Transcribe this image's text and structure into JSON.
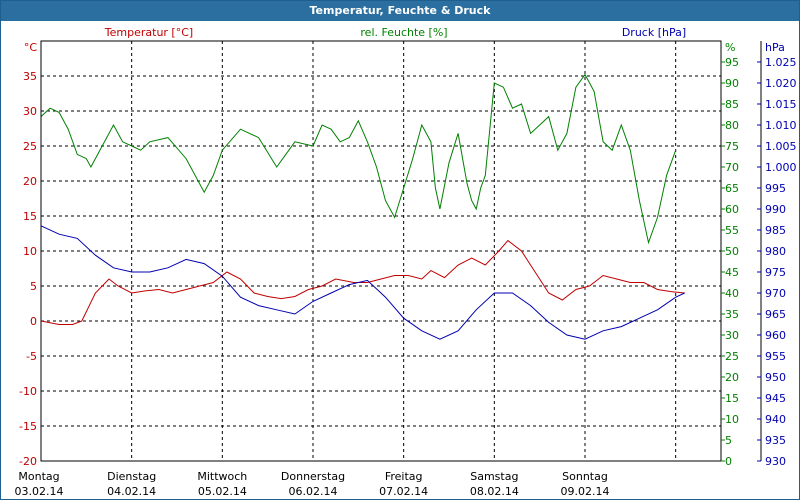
{
  "window": {
    "title": "Temperatur, Feuchte & Druck"
  },
  "chart_data": {
    "type": "line",
    "title": "Temperatur, Feuchte & Druck",
    "x_labels": [
      {
        "day": "Montag",
        "date": "03.02.14"
      },
      {
        "day": "Dienstag",
        "date": "04.02.14"
      },
      {
        "day": "Mittwoch",
        "date": "05.02.14"
      },
      {
        "day": "Donnerstag",
        "date": "06.02.14"
      },
      {
        "day": "Freitag",
        "date": "07.02.14"
      },
      {
        "day": "Samstag",
        "date": "08.02.14"
      },
      {
        "day": "Sonntag",
        "date": "09.02.14"
      }
    ],
    "x_range_days": [
      0,
      7.5
    ],
    "grid": true,
    "axes": {
      "temperature": {
        "label": "Temperatur [°C]",
        "unit": "°C",
        "range": [
          -20,
          40
        ],
        "ticks": [
          -20,
          -15,
          -10,
          -5,
          0,
          5,
          10,
          15,
          20,
          25,
          30,
          35
        ],
        "color": "#c00000"
      },
      "humidity": {
        "label": "rel. Feuchte [%]",
        "unit": "%",
        "range": [
          0,
          100
        ],
        "ticks": [
          0,
          5,
          10,
          15,
          20,
          25,
          30,
          35,
          40,
          45,
          50,
          55,
          60,
          65,
          70,
          75,
          80,
          85,
          90,
          95
        ],
        "color": "#008000"
      },
      "pressure": {
        "label": "Druck [hPa]",
        "unit": "hPa",
        "range": [
          930,
          1030
        ],
        "ticks": [
          "930",
          "935",
          "940",
          "945",
          "950",
          "955",
          "960",
          "965",
          "970",
          "975",
          "980",
          "985",
          "990",
          "995",
          "1.000",
          "1.005",
          "1.010",
          "1.015",
          "1.020",
          "1.025"
        ],
        "color": "#0000b0"
      }
    },
    "series": [
      {
        "name": "Temperatur [°C]",
        "axis": "temperature",
        "color": "#c00000",
        "x": [
          0,
          0.2,
          0.35,
          0.45,
          0.6,
          0.75,
          0.85,
          1.0,
          1.15,
          1.3,
          1.45,
          1.6,
          1.75,
          1.9,
          2.05,
          2.2,
          2.35,
          2.5,
          2.65,
          2.8,
          2.95,
          3.1,
          3.25,
          3.45,
          3.6,
          3.75,
          3.9,
          4.05,
          4.2,
          4.3,
          4.45,
          4.6,
          4.75,
          4.9,
          5.05,
          5.15,
          5.3,
          5.45,
          5.6,
          5.75,
          5.9,
          6.05,
          6.2,
          6.35,
          6.5,
          6.65,
          6.8,
          6.95,
          7.1
        ],
        "y": [
          0,
          -0.5,
          -0.5,
          0,
          4,
          6,
          5,
          4,
          4.3,
          4.5,
          4,
          4.5,
          5,
          5.5,
          7,
          6,
          4,
          3.5,
          3.2,
          3.5,
          4.5,
          5,
          6,
          5.5,
          5.5,
          6,
          6.5,
          6.5,
          6,
          7.2,
          6.2,
          8,
          9,
          8,
          10,
          11.5,
          10,
          7,
          4,
          3,
          4.5,
          5,
          6.5,
          6,
          5.5,
          5.5,
          4.5,
          4.2,
          4
        ]
      },
      {
        "name": "rel. Feuchte [%]",
        "axis": "humidity",
        "color": "#008000",
        "x": [
          0,
          0.1,
          0.2,
          0.3,
          0.4,
          0.5,
          0.55,
          0.6,
          0.7,
          0.8,
          0.9,
          1.0,
          1.1,
          1.2,
          1.4,
          1.6,
          1.8,
          1.9,
          2.0,
          2.2,
          2.4,
          2.6,
          2.7,
          2.8,
          3.0,
          3.1,
          3.2,
          3.3,
          3.4,
          3.5,
          3.6,
          3.7,
          3.8,
          3.9,
          4.0,
          4.1,
          4.2,
          4.3,
          4.35,
          4.4,
          4.5,
          4.6,
          4.7,
          4.75,
          4.8,
          4.85,
          4.9,
          5.0,
          5.1,
          5.2,
          5.3,
          5.4,
          5.5,
          5.6,
          5.7,
          5.8,
          5.9,
          6.0,
          6.1,
          6.2,
          6.3,
          6.4,
          6.5,
          6.6,
          6.7,
          6.8,
          6.9,
          7.0
        ],
        "y": [
          82,
          84,
          83,
          79,
          73,
          72,
          70,
          72,
          76,
          80,
          76,
          75,
          74,
          76,
          77,
          72,
          64,
          68,
          74,
          79,
          77,
          70,
          73,
          76,
          75,
          80,
          79,
          76,
          77,
          81,
          76,
          70,
          62,
          58,
          65,
          72,
          80,
          76,
          65,
          60,
          71,
          78,
          66,
          62,
          60,
          65,
          68,
          90,
          89,
          84,
          85,
          78,
          80,
          82,
          74,
          78,
          89,
          92,
          88,
          76,
          74,
          80,
          74,
          62,
          52,
          58,
          68,
          74
        ]
      },
      {
        "name": "Druck [hPa]",
        "axis": "pressure",
        "color": "#0000b0",
        "x": [
          0,
          0.2,
          0.4,
          0.6,
          0.8,
          1.0,
          1.2,
          1.4,
          1.6,
          1.8,
          2.0,
          2.2,
          2.4,
          2.6,
          2.8,
          3.0,
          3.2,
          3.4,
          3.6,
          3.8,
          4.0,
          4.2,
          4.4,
          4.6,
          4.8,
          5.0,
          5.2,
          5.4,
          5.6,
          5.8,
          6.0,
          6.2,
          6.4,
          6.6,
          6.8,
          7.0,
          7.1
        ],
        "y": [
          986,
          984,
          983,
          979,
          976,
          975,
          975,
          976,
          978,
          977,
          974,
          969,
          967,
          966,
          965,
          968,
          970,
          972,
          973,
          969,
          964,
          961,
          959,
          961,
          966,
          970,
          970,
          967,
          963,
          960,
          959,
          961,
          962,
          964,
          966,
          969,
          970
        ]
      }
    ]
  }
}
